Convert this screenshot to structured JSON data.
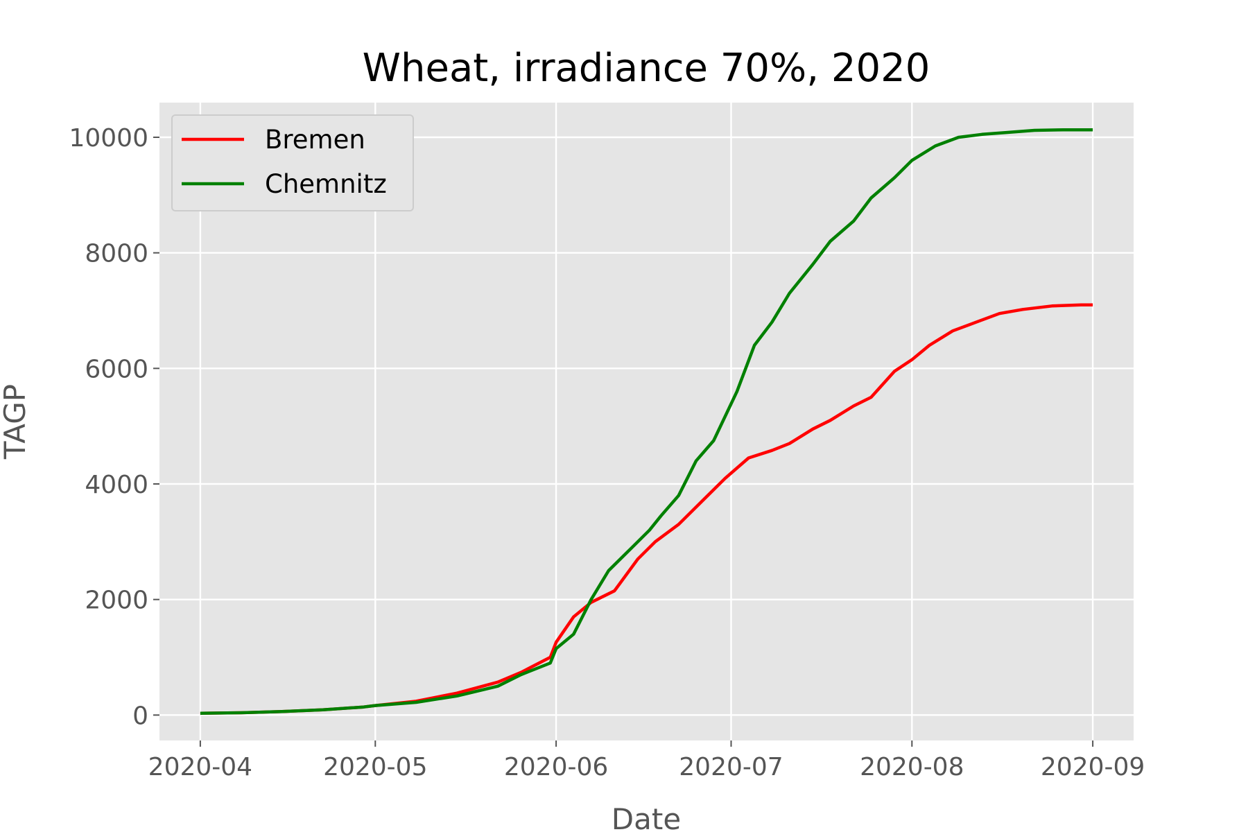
{
  "chart_data": {
    "type": "line",
    "title": "Wheat, irradiance 70%, 2020",
    "xlabel": "Date",
    "ylabel": "TAGP",
    "x_ticks": [
      "2020-04-01",
      "2020-05-01",
      "2020-06-01",
      "2020-07-01",
      "2020-08-01",
      "2020-09-01"
    ],
    "x_tick_labels": [
      "2020-04",
      "2020-05",
      "2020-06",
      "2020-07",
      "2020-08",
      "2020-09"
    ],
    "y_ticks": [
      0,
      2000,
      4000,
      6000,
      8000,
      10000
    ],
    "y_tick_labels": [
      "0",
      "2000",
      "4000",
      "6000",
      "8000",
      "10000"
    ],
    "xlim": [
      "2020-03-25",
      "2020-09-08"
    ],
    "ylim": [
      -440,
      10600
    ],
    "grid": true,
    "legend_position": "top-left",
    "style": "ggplot",
    "series": [
      {
        "name": "Bremen",
        "color": "#ff0000",
        "points": [
          [
            "2020-04-01",
            30
          ],
          [
            "2020-04-08",
            40
          ],
          [
            "2020-04-15",
            60
          ],
          [
            "2020-04-22",
            90
          ],
          [
            "2020-04-29",
            140
          ],
          [
            "2020-05-01",
            165
          ],
          [
            "2020-05-08",
            240
          ],
          [
            "2020-05-15",
            380
          ],
          [
            "2020-05-22",
            570
          ],
          [
            "2020-05-26",
            740
          ],
          [
            "2020-05-31",
            1000
          ],
          [
            "2020-06-01",
            1260
          ],
          [
            "2020-06-04",
            1700
          ],
          [
            "2020-06-07",
            1950
          ],
          [
            "2020-06-11",
            2150
          ],
          [
            "2020-06-15",
            2700
          ],
          [
            "2020-06-18",
            3000
          ],
          [
            "2020-06-22",
            3300
          ],
          [
            "2020-06-26",
            3700
          ],
          [
            "2020-06-30",
            4100
          ],
          [
            "2020-07-04",
            4450
          ],
          [
            "2020-07-08",
            4580
          ],
          [
            "2020-07-11",
            4700
          ],
          [
            "2020-07-15",
            4950
          ],
          [
            "2020-07-18",
            5100
          ],
          [
            "2020-07-22",
            5350
          ],
          [
            "2020-07-25",
            5500
          ],
          [
            "2020-07-29",
            5950
          ],
          [
            "2020-08-01",
            6150
          ],
          [
            "2020-08-04",
            6400
          ],
          [
            "2020-08-08",
            6650
          ],
          [
            "2020-08-12",
            6800
          ],
          [
            "2020-08-16",
            6950
          ],
          [
            "2020-08-20",
            7020
          ],
          [
            "2020-08-25",
            7080
          ],
          [
            "2020-08-30",
            7100
          ],
          [
            "2020-09-01",
            7100
          ]
        ]
      },
      {
        "name": "Chemnitz",
        "color": "#008000",
        "points": [
          [
            "2020-04-01",
            30
          ],
          [
            "2020-04-08",
            40
          ],
          [
            "2020-04-15",
            60
          ],
          [
            "2020-04-22",
            90
          ],
          [
            "2020-04-29",
            140
          ],
          [
            "2020-05-01",
            165
          ],
          [
            "2020-05-08",
            220
          ],
          [
            "2020-05-15",
            330
          ],
          [
            "2020-05-22",
            500
          ],
          [
            "2020-05-26",
            700
          ],
          [
            "2020-05-31",
            900
          ],
          [
            "2020-06-01",
            1150
          ],
          [
            "2020-06-04",
            1400
          ],
          [
            "2020-06-07",
            2000
          ],
          [
            "2020-06-10",
            2500
          ],
          [
            "2020-06-14",
            2900
          ],
          [
            "2020-06-17",
            3200
          ],
          [
            "2020-06-19",
            3450
          ],
          [
            "2020-06-22",
            3800
          ],
          [
            "2020-06-25",
            4400
          ],
          [
            "2020-06-28",
            4750
          ],
          [
            "2020-07-02",
            5600
          ],
          [
            "2020-07-05",
            6400
          ],
          [
            "2020-07-08",
            6800
          ],
          [
            "2020-07-11",
            7300
          ],
          [
            "2020-07-15",
            7800
          ],
          [
            "2020-07-18",
            8200
          ],
          [
            "2020-07-22",
            8550
          ],
          [
            "2020-07-25",
            8950
          ],
          [
            "2020-07-29",
            9300
          ],
          [
            "2020-08-01",
            9600
          ],
          [
            "2020-08-05",
            9850
          ],
          [
            "2020-08-09",
            10000
          ],
          [
            "2020-08-13",
            10050
          ],
          [
            "2020-08-17",
            10080
          ],
          [
            "2020-08-22",
            10120
          ],
          [
            "2020-08-27",
            10130
          ],
          [
            "2020-09-01",
            10130
          ]
        ]
      }
    ]
  }
}
